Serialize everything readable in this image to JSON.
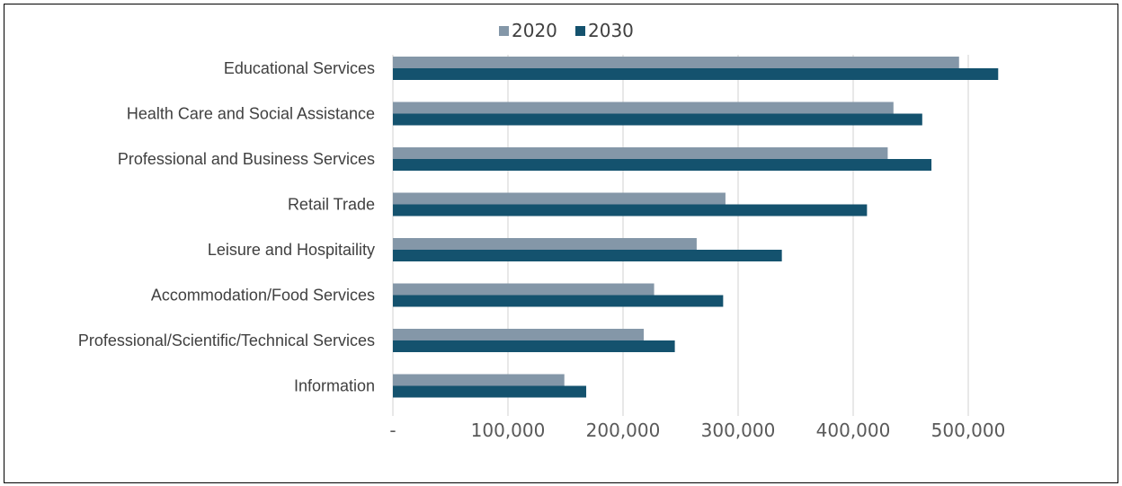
{
  "chart_data": {
    "type": "bar",
    "orientation": "horizontal",
    "title": "",
    "xlabel": "",
    "ylabel": "",
    "categories": [
      "Educational Services",
      "Health Care and Social Assistance",
      "Professional and Business Services",
      "Retail Trade",
      "Leisure and Hospitaility",
      "Accommodation/Food Services",
      "Professional/Scientific/Technical Services",
      "Information"
    ],
    "series": [
      {
        "name": "2020",
        "color": "#8497a8",
        "values": [
          492000,
          435000,
          430000,
          289000,
          264000,
          227000,
          218000,
          149000
        ]
      },
      {
        "name": "2030",
        "color": "#14526e",
        "values": [
          526000,
          460000,
          468000,
          412000,
          338000,
          287000,
          245000,
          168000
        ]
      }
    ],
    "xlim": [
      0,
      550000
    ],
    "x_ticks": [
      0,
      100000,
      200000,
      300000,
      400000,
      500000
    ],
    "x_tick_labels": [
      "-",
      "100,000",
      "200,000",
      "300,000",
      "400,000",
      "500,000"
    ],
    "grid": true,
    "legend_position": "top"
  }
}
